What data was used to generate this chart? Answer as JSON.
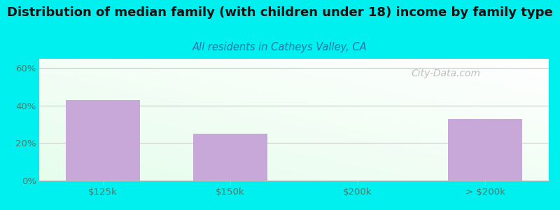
{
  "title": "Distribution of median family (with children under 18) income by family type",
  "subtitle": "All residents in Catheys Valley, CA",
  "categories": [
    "$125k",
    "$150k",
    "$200k",
    "> $200k"
  ],
  "values": [
    43.0,
    25.0,
    0.0,
    33.0
  ],
  "bar_color": "#c8a8d8",
  "background_outer": "#00f0f0",
  "title_fontsize": 13,
  "subtitle_fontsize": 10.5,
  "ylabel_ticks": [
    "0%",
    "20%",
    "40%",
    "60%"
  ],
  "ytick_vals": [
    0,
    20,
    40,
    60
  ],
  "ylim": [
    0,
    65
  ],
  "watermark": "City-Data.com",
  "tick_label_color": "#4a7a6a",
  "subtitle_color": "#2277aa",
  "title_color": "#111111"
}
